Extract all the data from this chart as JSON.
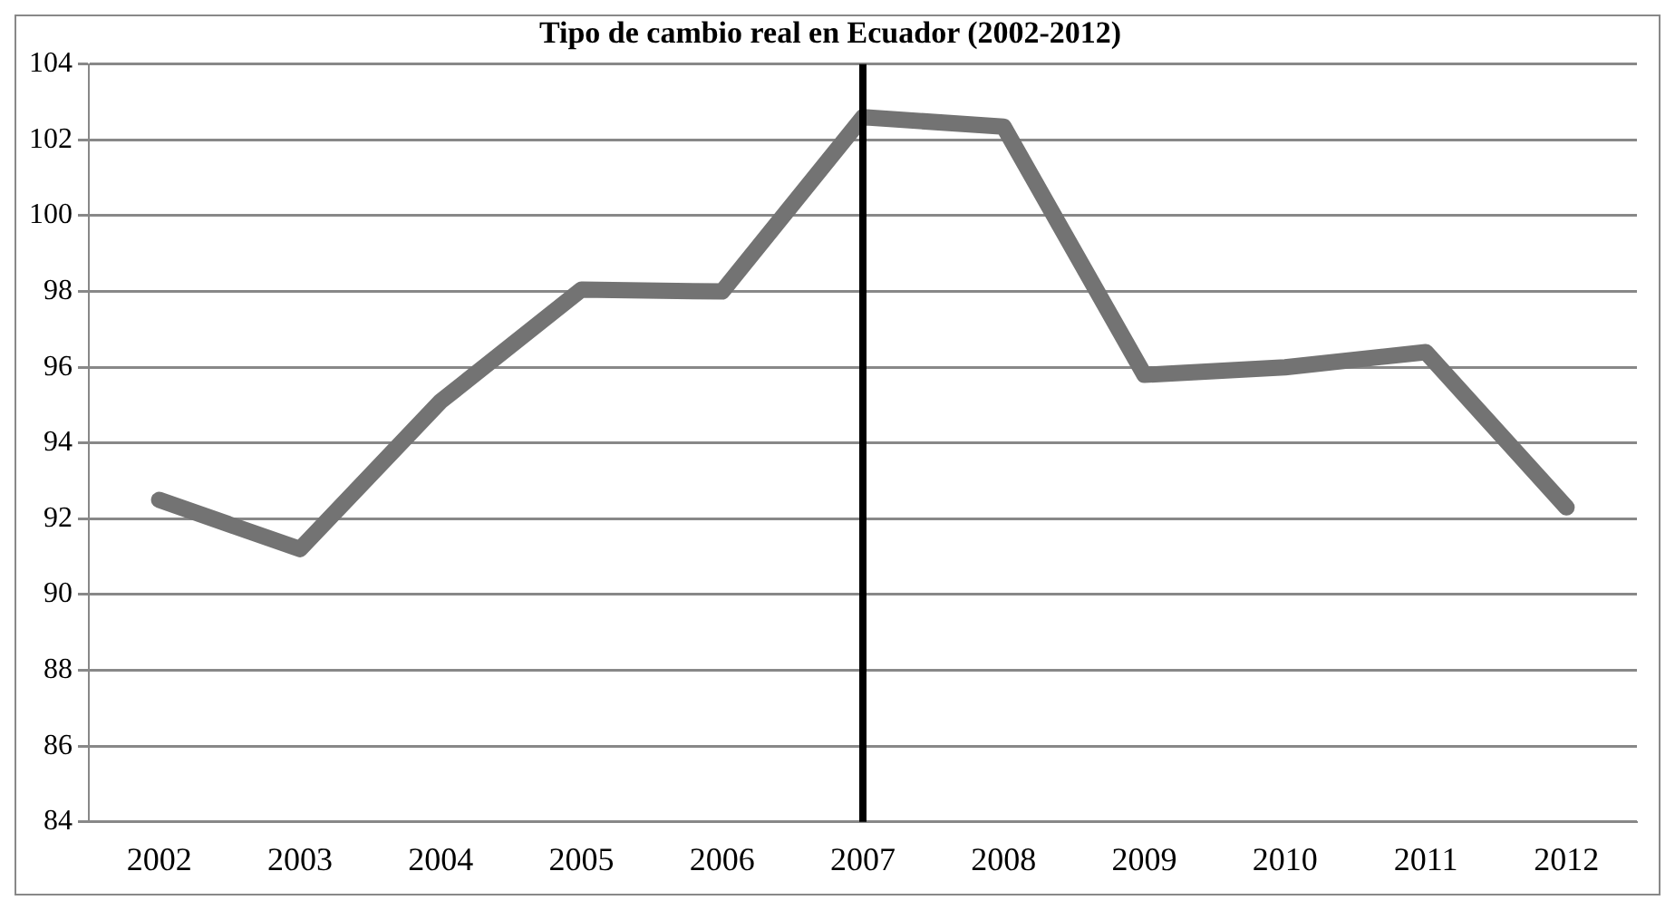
{
  "chart_data": {
    "type": "line",
    "title": "Tipo de cambio real en Ecuador (2002-2012)",
    "categories": [
      "2002",
      "2003",
      "2004",
      "2005",
      "2006",
      "2007",
      "2008",
      "2009",
      "2010",
      "2011",
      "2012"
    ],
    "series": [
      {
        "color": "#737373",
        "values": [
          92.5,
          91.2,
          95.1,
          98.05,
          98.0,
          102.6,
          102.35,
          95.8,
          96.0,
          96.4,
          92.3
        ]
      }
    ],
    "ylim": [
      84,
      104
    ],
    "yticks": [
      84,
      86,
      88,
      90,
      92,
      94,
      96,
      98,
      100,
      102,
      104
    ],
    "grid": "y",
    "legend": false,
    "marker": "none",
    "line_style": "solid",
    "ref_lines": [
      {
        "axis": "x",
        "value": "2007",
        "color": "#000000"
      }
    ]
  }
}
